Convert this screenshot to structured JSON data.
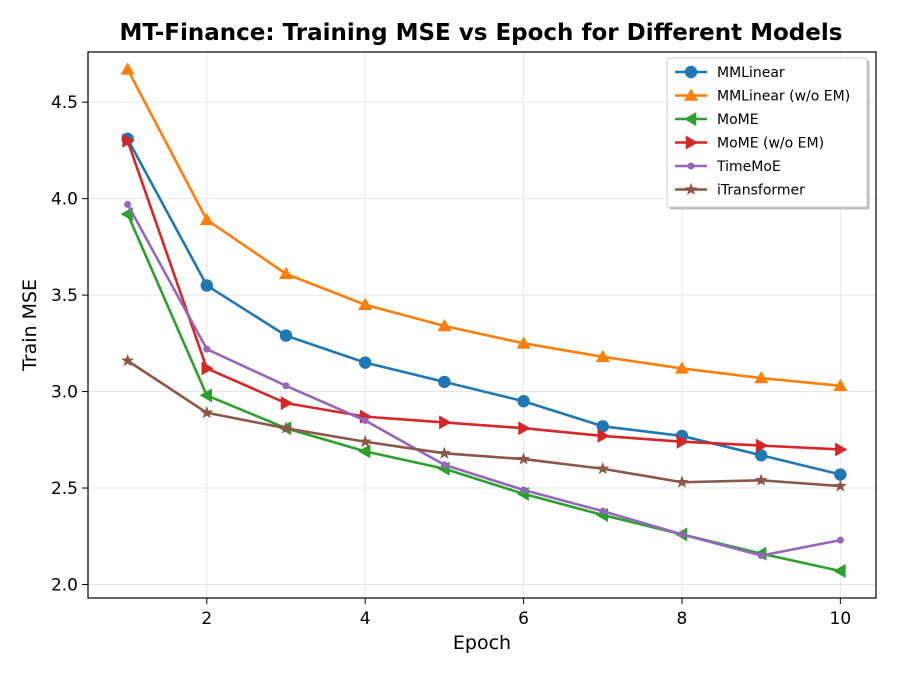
{
  "chart_data": {
    "type": "line",
    "title": "MT-Finance: Training MSE vs Epoch for Different Models",
    "xlabel": "Epoch",
    "ylabel": "Train MSE",
    "xlim": [
      0.5,
      10.45
    ],
    "ylim": [
      1.93,
      4.76
    ],
    "xticks": [
      2,
      4,
      6,
      8,
      10
    ],
    "yticks": [
      2.0,
      2.5,
      3.0,
      3.5,
      4.0,
      4.5
    ],
    "grid": true,
    "legend_position": "top-right",
    "x": [
      1,
      2,
      3,
      4,
      5,
      6,
      7,
      8,
      9,
      10
    ],
    "series": [
      {
        "name": "MMLinear",
        "color": "#1f77b4",
        "marker": "circle",
        "values": [
          4.31,
          3.55,
          3.29,
          3.15,
          3.05,
          2.95,
          2.82,
          2.77,
          2.67,
          2.57
        ]
      },
      {
        "name": "MMLinear (w/o EM)",
        "color": "#ff7f0e",
        "marker": "triangle-up",
        "values": [
          4.67,
          3.89,
          3.61,
          3.45,
          3.34,
          3.25,
          3.18,
          3.12,
          3.07,
          3.03
        ]
      },
      {
        "name": "MoME",
        "color": "#2ca02c",
        "marker": "triangle-left",
        "values": [
          3.92,
          2.98,
          2.81,
          2.69,
          2.6,
          2.47,
          2.36,
          2.26,
          2.16,
          2.07
        ]
      },
      {
        "name": "MoME (w/o EM)",
        "color": "#d62728",
        "marker": "triangle-right",
        "values": [
          4.3,
          3.12,
          2.94,
          2.87,
          2.84,
          2.81,
          2.77,
          2.74,
          2.72,
          2.7
        ]
      },
      {
        "name": "TimeMoE",
        "color": "#9467bd",
        "marker": "small-dot",
        "values": [
          3.97,
          3.22,
          3.03,
          2.85,
          2.62,
          2.49,
          2.38,
          2.26,
          2.15,
          2.23
        ]
      },
      {
        "name": "iTransformer",
        "color": "#8c564b",
        "marker": "star",
        "values": [
          3.16,
          2.89,
          2.81,
          2.74,
          2.68,
          2.65,
          2.6,
          2.53,
          2.54,
          2.51
        ]
      }
    ]
  }
}
